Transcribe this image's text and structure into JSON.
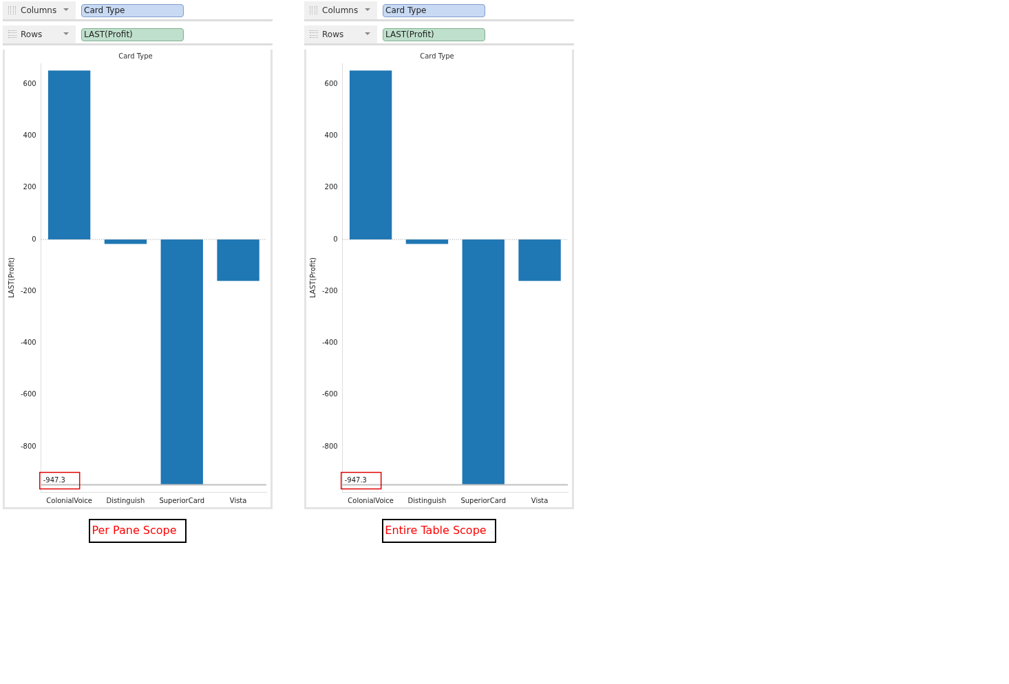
{
  "chart_data": [
    {
      "type": "bar",
      "title": "Card Type",
      "ylabel": "LAST(Profit)",
      "categories": [
        "ColonialVoice",
        "Distinguish",
        "SuperiorCard",
        "Vista"
      ],
      "values": [
        652,
        -17,
        -947.3,
        -160
      ],
      "color": "#1f77b4",
      "ylim": [
        -975,
        680
      ],
      "yticks": [
        -800,
        -600,
        -400,
        -200,
        0,
        200,
        400,
        600
      ],
      "grid": false,
      "legend": false,
      "ref_lines": [
        {
          "axis": "y",
          "value": 0,
          "color": "#999999",
          "line_style": "dotted"
        },
        {
          "axis": "y",
          "value": -947.3,
          "label": "-947.3",
          "color": "#c0c0c0"
        }
      ],
      "annotations": [
        "Columns",
        "Card Type",
        "Rows",
        "LAST(Profit)",
        "Per Pane Scope"
      ]
    },
    {
      "type": "bar",
      "title": "Card Type",
      "ylabel": "LAST(Profit)",
      "categories": [
        "ColonialVoice",
        "Distinguish",
        "SuperiorCard",
        "Vista"
      ],
      "values": [
        652,
        -17,
        -947.3,
        -160
      ],
      "color": "#1f77b4",
      "ylim": [
        -975,
        680
      ],
      "yticks": [
        -800,
        -600,
        -400,
        -200,
        0,
        200,
        400,
        600
      ],
      "grid": false,
      "legend": false,
      "ref_lines": [
        {
          "axis": "y",
          "value": 0,
          "color": "#999999",
          "line_style": "dotted"
        },
        {
          "axis": "y",
          "value": -947.3,
          "label": "-947.3",
          "color": "#c0c0c0"
        }
      ],
      "annotations": [
        "Columns",
        "Card Type",
        "Rows",
        "LAST(Profit)",
        "Entire Table Scope"
      ]
    }
  ]
}
